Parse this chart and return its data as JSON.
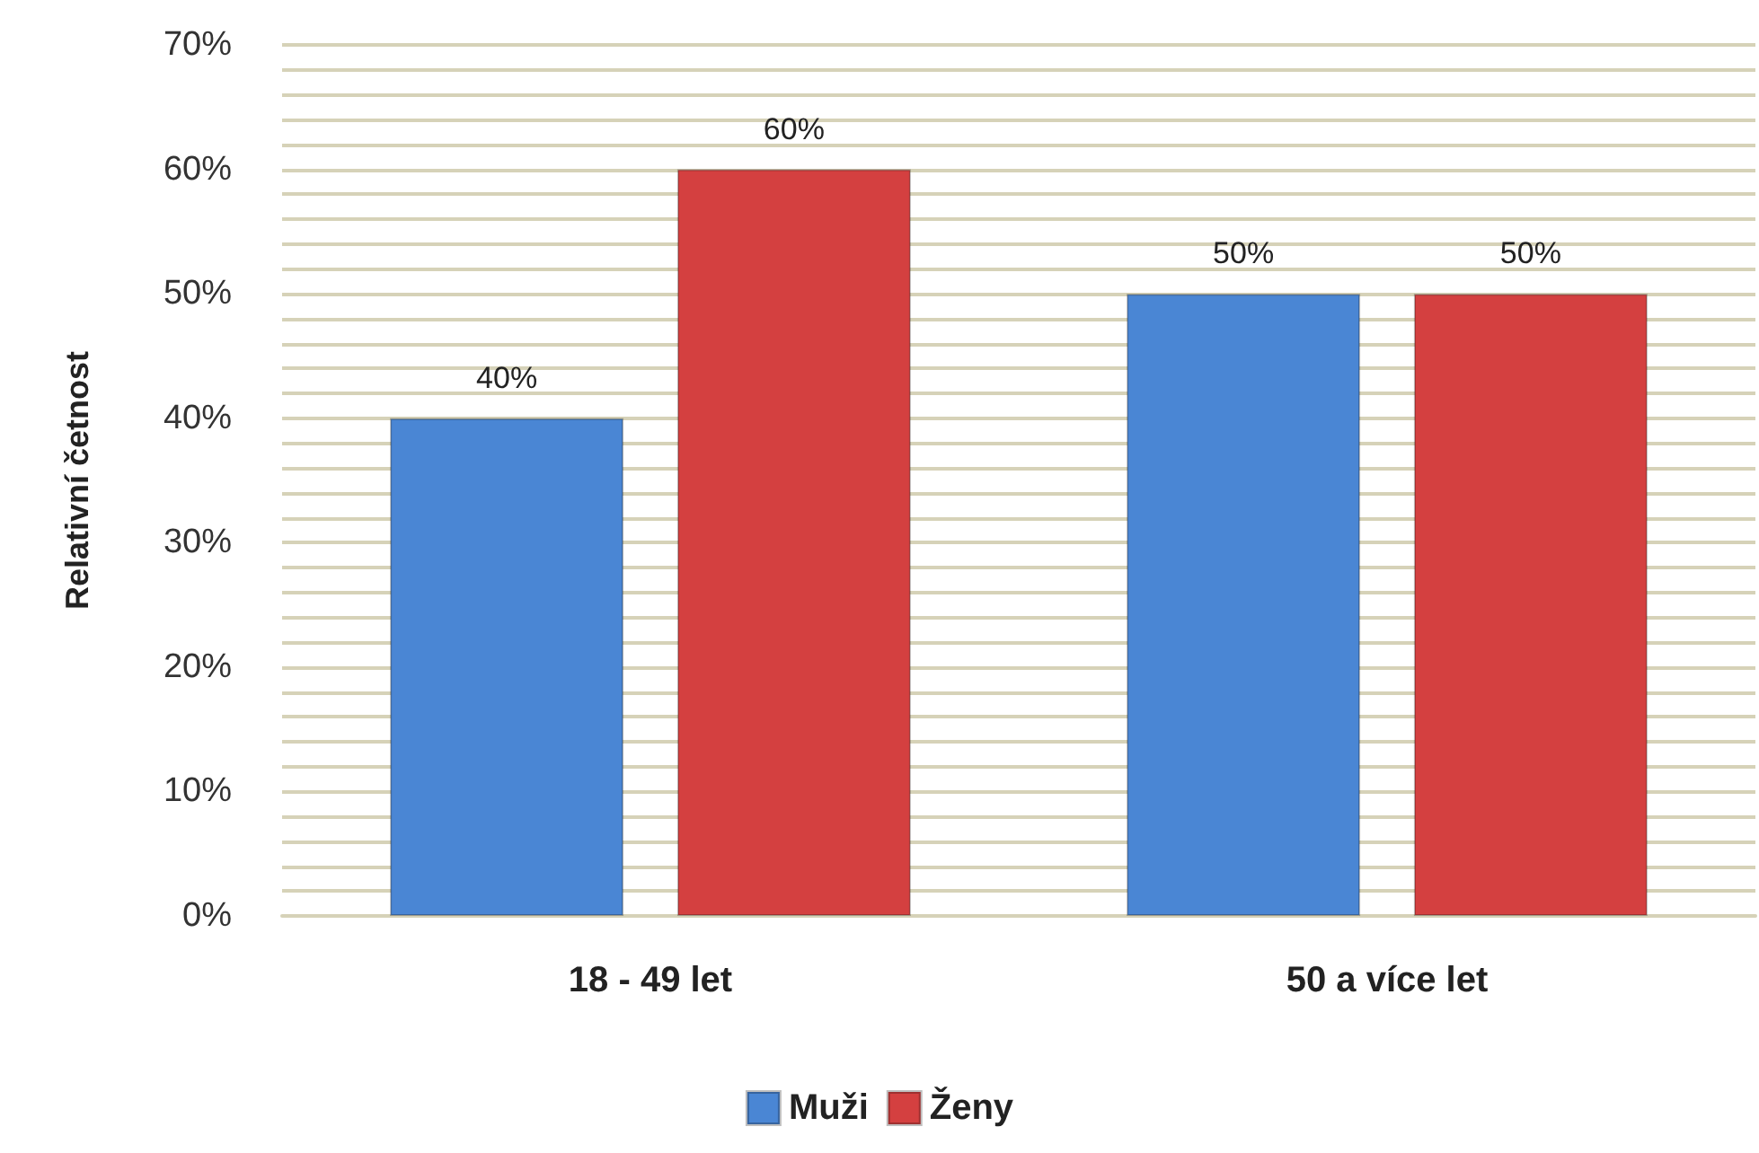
{
  "chart_data": {
    "type": "bar",
    "ylabel": "Relativní četnost",
    "categories": [
      "18 - 49 let",
      "50 a více let"
    ],
    "series": [
      {
        "name": "Muži",
        "color": "#4a86d4",
        "values": [
          40,
          50
        ],
        "value_labels": [
          "40%",
          "50%"
        ]
      },
      {
        "name": "Ženy",
        "color": "#d44040",
        "values": [
          60,
          50
        ],
        "value_labels": [
          "60%",
          "50%"
        ]
      }
    ],
    "ylim": [
      0,
      70
    ],
    "yticks": [
      {
        "value": 0,
        "label": "0%"
      },
      {
        "value": 2,
        "label": null
      },
      {
        "value": 4,
        "label": null
      },
      {
        "value": 6,
        "label": null
      },
      {
        "value": 8,
        "label": null
      },
      {
        "value": 10,
        "label": "10%"
      },
      {
        "value": 12,
        "label": null
      },
      {
        "value": 14,
        "label": null
      },
      {
        "value": 16,
        "label": null
      },
      {
        "value": 18,
        "label": null
      },
      {
        "value": 20,
        "label": "20%"
      },
      {
        "value": 22,
        "label": null
      },
      {
        "value": 24,
        "label": null
      },
      {
        "value": 26,
        "label": null
      },
      {
        "value": 28,
        "label": null
      },
      {
        "value": 30,
        "label": "30%"
      },
      {
        "value": 32,
        "label": null
      },
      {
        "value": 34,
        "label": null
      },
      {
        "value": 36,
        "label": null
      },
      {
        "value": 38,
        "label": null
      },
      {
        "value": 40,
        "label": "40%"
      },
      {
        "value": 42,
        "label": null
      },
      {
        "value": 44,
        "label": null
      },
      {
        "value": 46,
        "label": null
      },
      {
        "value": 48,
        "label": null
      },
      {
        "value": 50,
        "label": "50%"
      },
      {
        "value": 52,
        "label": null
      },
      {
        "value": 54,
        "label": null
      },
      {
        "value": 56,
        "label": null
      },
      {
        "value": 58,
        "label": null
      },
      {
        "value": 60,
        "label": "60%"
      },
      {
        "value": 62,
        "label": null
      },
      {
        "value": 64,
        "label": null
      },
      {
        "value": 66,
        "label": null
      },
      {
        "value": 68,
        "label": null
      },
      {
        "value": 70,
        "label": "70%"
      }
    ],
    "grid": "y",
    "legend": "bottom"
  }
}
